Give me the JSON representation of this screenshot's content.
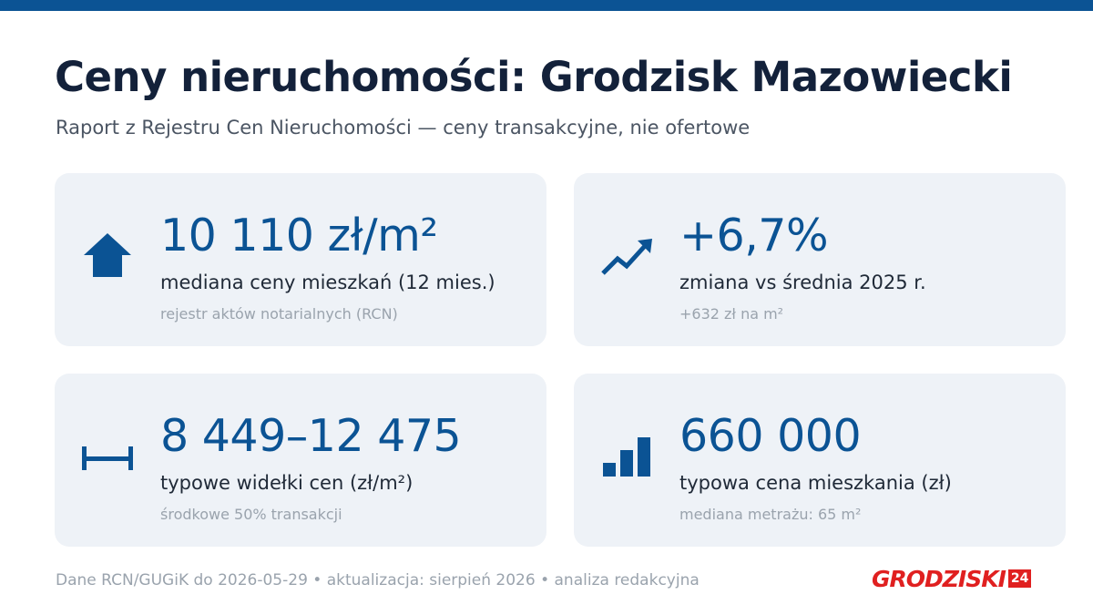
{
  "header": {
    "title": "Ceny nieruchomości: Grodzisk Mazowiecki",
    "subtitle": "Raport z Rejestru Cen Nieruchomości — ceny transakcyjne, nie ofertowe"
  },
  "cards": [
    {
      "value": "10 110 zł/m²",
      "label": "mediana ceny mieszkań (12 mies.)",
      "note": "rejestr aktów notarialnych (RCN)"
    },
    {
      "value": "+6,7%",
      "label": "zmiana vs średnia 2025 r.",
      "note": "+632 zł na m²"
    },
    {
      "value": "8 449–12 475",
      "label": "typowe widełki cen (zł/m²)",
      "note": "środkowe 50% transakcji"
    },
    {
      "value": "660 000",
      "label": "typowa cena mieszkania (zł)",
      "note": "mediana metrażu: 65 m²"
    }
  ],
  "footer": {
    "text": "Dane RCN/GUGiK do 2026-05-29 • aktualizacja: sierpień 2026 • analiza redakcyjna"
  },
  "logo": {
    "text": "GRODZISKI",
    "badge": "24"
  }
}
